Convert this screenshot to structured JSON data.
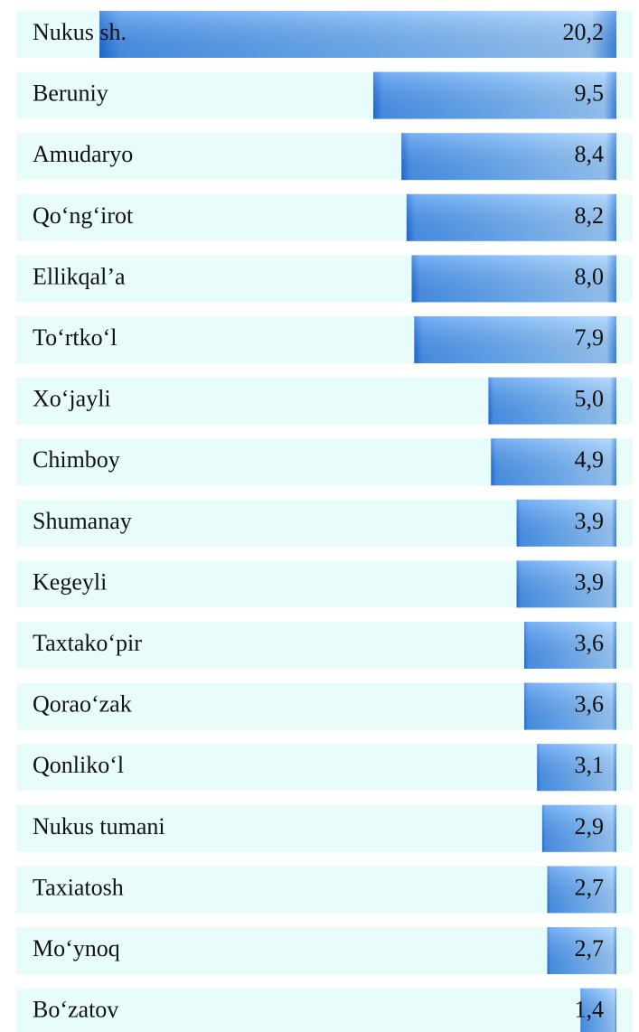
{
  "chart_data": {
    "type": "bar",
    "orientation": "horizontal",
    "color": "#5aa8f5",
    "categories": [
      "Nukus sh.",
      "Beruniy",
      "Amudaryo",
      "Qo‘ng‘irot",
      "Ellikqal’a",
      "To‘rtko‘l",
      "Xo‘jayli",
      "Chimboy",
      "Shumanay",
      "Kegeyli",
      "Taxtako‘pir",
      "Qorao‘zak",
      "Qonliko‘l",
      "Nukus tumani",
      "Taxiatosh",
      "Mo‘ynoq",
      "Bo‘zatov"
    ],
    "values": [
      20.2,
      9.5,
      8.4,
      8.2,
      8.0,
      7.9,
      5.0,
      4.9,
      3.9,
      3.9,
      3.6,
      3.6,
      3.1,
      2.9,
      2.7,
      2.7,
      1.4
    ],
    "value_labels": [
      "20,2",
      "9,5",
      "8,4",
      "8,2",
      "8,0",
      "7,9",
      "5,0",
      "4,9",
      "3,9",
      "3,9",
      "3,6",
      "3,6",
      "3,1",
      "2,9",
      "2,7",
      "2,7",
      "1,4"
    ]
  }
}
